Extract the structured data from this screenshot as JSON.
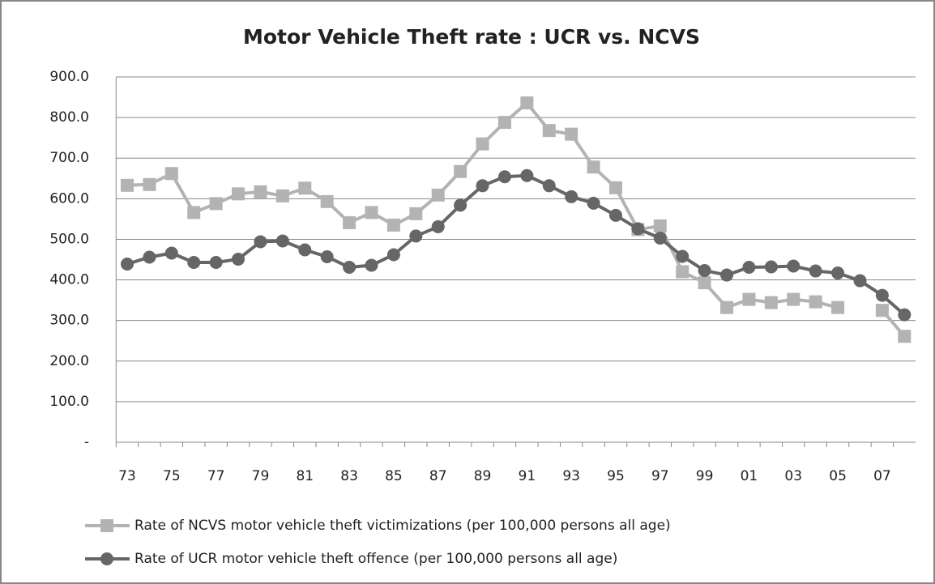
{
  "chart_data": {
    "type": "line",
    "title": "Motor Vehicle Theft rate : UCR vs. NCVS",
    "categories": [
      "73",
      null,
      "75",
      null,
      "77",
      null,
      "79",
      null,
      "81",
      null,
      "83",
      null,
      "85",
      null,
      "87",
      null,
      "89",
      null,
      "91",
      null,
      "93",
      null,
      "95",
      null,
      "97",
      null,
      "99",
      null,
      "01",
      null,
      "03",
      null,
      "05",
      null,
      "07",
      null
    ],
    "series": [
      {
        "name": "Rate of NCVS motor vehicle theft victimizations (per 100,000 persons all age)",
        "color": "#b3b3b3",
        "marker": "square",
        "values": [
          633,
          635,
          662,
          566,
          588,
          612,
          617,
          607,
          626,
          593,
          541,
          566,
          535,
          563,
          609,
          667,
          735,
          788,
          836,
          768,
          759,
          678,
          627,
          524,
          533,
          420,
          393,
          332,
          352,
          344,
          352,
          346,
          332,
          null,
          325,
          261
        ]
      },
      {
        "name": "Rate of UCR motor vehicle theft offence (per 100,000 persons all age)",
        "color": "#666666",
        "marker": "circle",
        "values": [
          439,
          456,
          466,
          443,
          443,
          451,
          494,
          496,
          474,
          457,
          431,
          436,
          462,
          508,
          531,
          584,
          632,
          654,
          657,
          632,
          605,
          589,
          559,
          526,
          503,
          458,
          423,
          412,
          431,
          432,
          434,
          422,
          417,
          398,
          362,
          314
        ]
      }
    ],
    "ylim": [
      0,
      900
    ],
    "yticks": [
      {
        "value": 0,
        "label": "-"
      },
      {
        "value": 100,
        "label": "100.0"
      },
      {
        "value": 200,
        "label": "200.0"
      },
      {
        "value": 300,
        "label": "300.0"
      },
      {
        "value": 400,
        "label": "400.0"
      },
      {
        "value": 500,
        "label": "500.0"
      },
      {
        "value": 600,
        "label": "600.0"
      },
      {
        "value": 700,
        "label": "700.0"
      },
      {
        "value": 800,
        "label": "800.0"
      },
      {
        "value": 900,
        "label": "900.0"
      }
    ],
    "grid": true,
    "legend": "bottom"
  }
}
